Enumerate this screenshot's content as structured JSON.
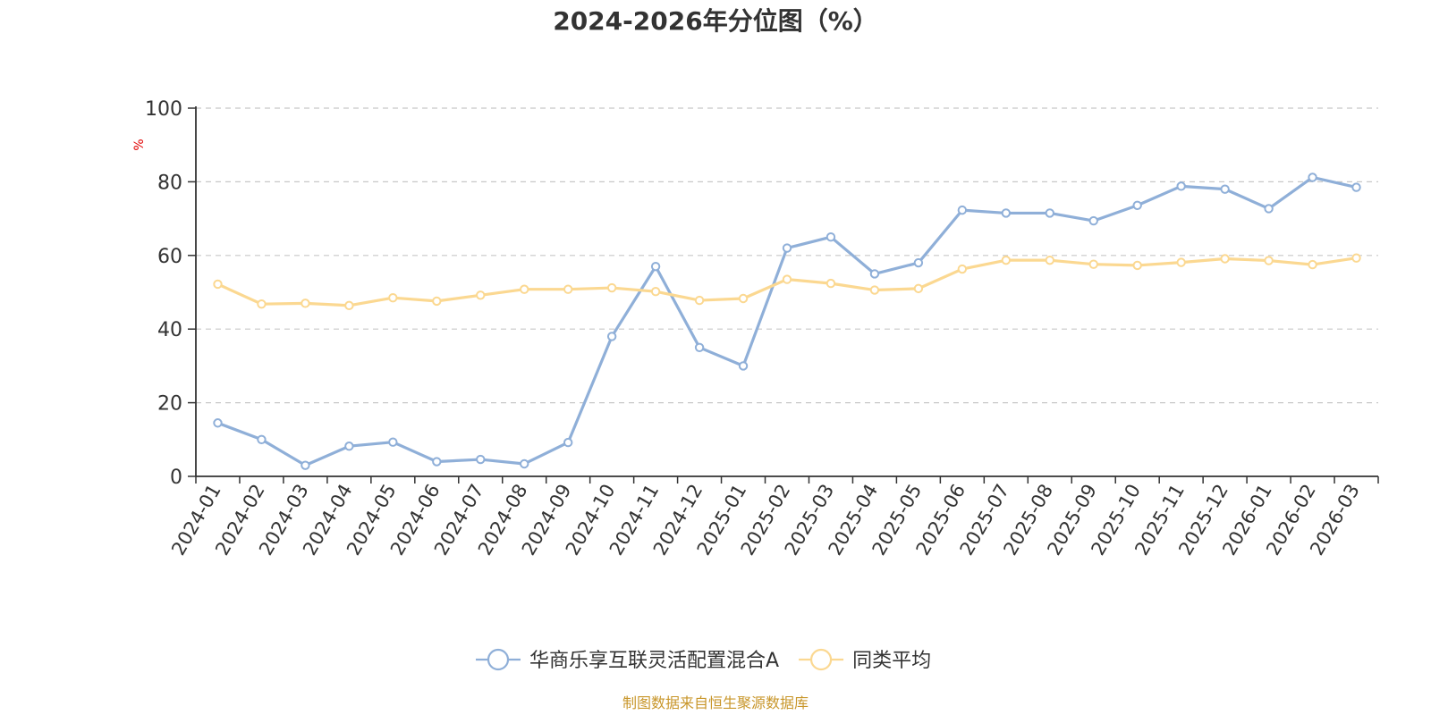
{
  "chart_data": {
    "type": "line",
    "title": "2024-2026年分位图（%）",
    "ylabel": "%",
    "xlabel": "",
    "ylim": [
      0,
      100
    ],
    "yticks": [
      0,
      20,
      40,
      60,
      80,
      100
    ],
    "grid": true,
    "legend_position": "bottom",
    "categories": [
      "2024-01",
      "2024-02",
      "2024-03",
      "2024-04",
      "2024-05",
      "2024-06",
      "2024-07",
      "2024-08",
      "2024-09",
      "2024-10",
      "2024-11",
      "2024-12",
      "2025-01",
      "2025-02",
      "2025-03",
      "2025-04",
      "2025-05",
      "2025-06",
      "2025-07",
      "2025-08",
      "2025-09",
      "2025-10",
      "2025-11",
      "2025-12",
      "2026-01",
      "2026-02",
      "2026-03"
    ],
    "series": [
      {
        "name": "华商乐享互联灵活配置混合A",
        "color": "#8fafd8",
        "values": [
          14.5,
          10.0,
          3.0,
          8.2,
          9.3,
          4.0,
          4.6,
          3.4,
          9.2,
          38.0,
          57.0,
          35.0,
          30.0,
          62.0,
          65.0,
          55.0,
          58.0,
          72.3,
          71.5,
          71.5,
          69.4,
          73.6,
          78.8,
          78.0,
          72.7,
          81.2,
          78.5
        ]
      },
      {
        "name": "同类平均",
        "color": "#fbd891",
        "values": [
          52.2,
          46.8,
          47.0,
          46.4,
          48.5,
          47.6,
          49.2,
          50.8,
          50.8,
          51.2,
          50.2,
          47.8,
          48.3,
          53.5,
          52.4,
          50.6,
          51.0,
          56.3,
          58.7,
          58.7,
          57.6,
          57.3,
          58.1,
          59.1,
          58.6,
          57.5,
          59.3
        ]
      }
    ]
  },
  "footer": {
    "source": "制图数据来自恒生聚源数据库"
  }
}
